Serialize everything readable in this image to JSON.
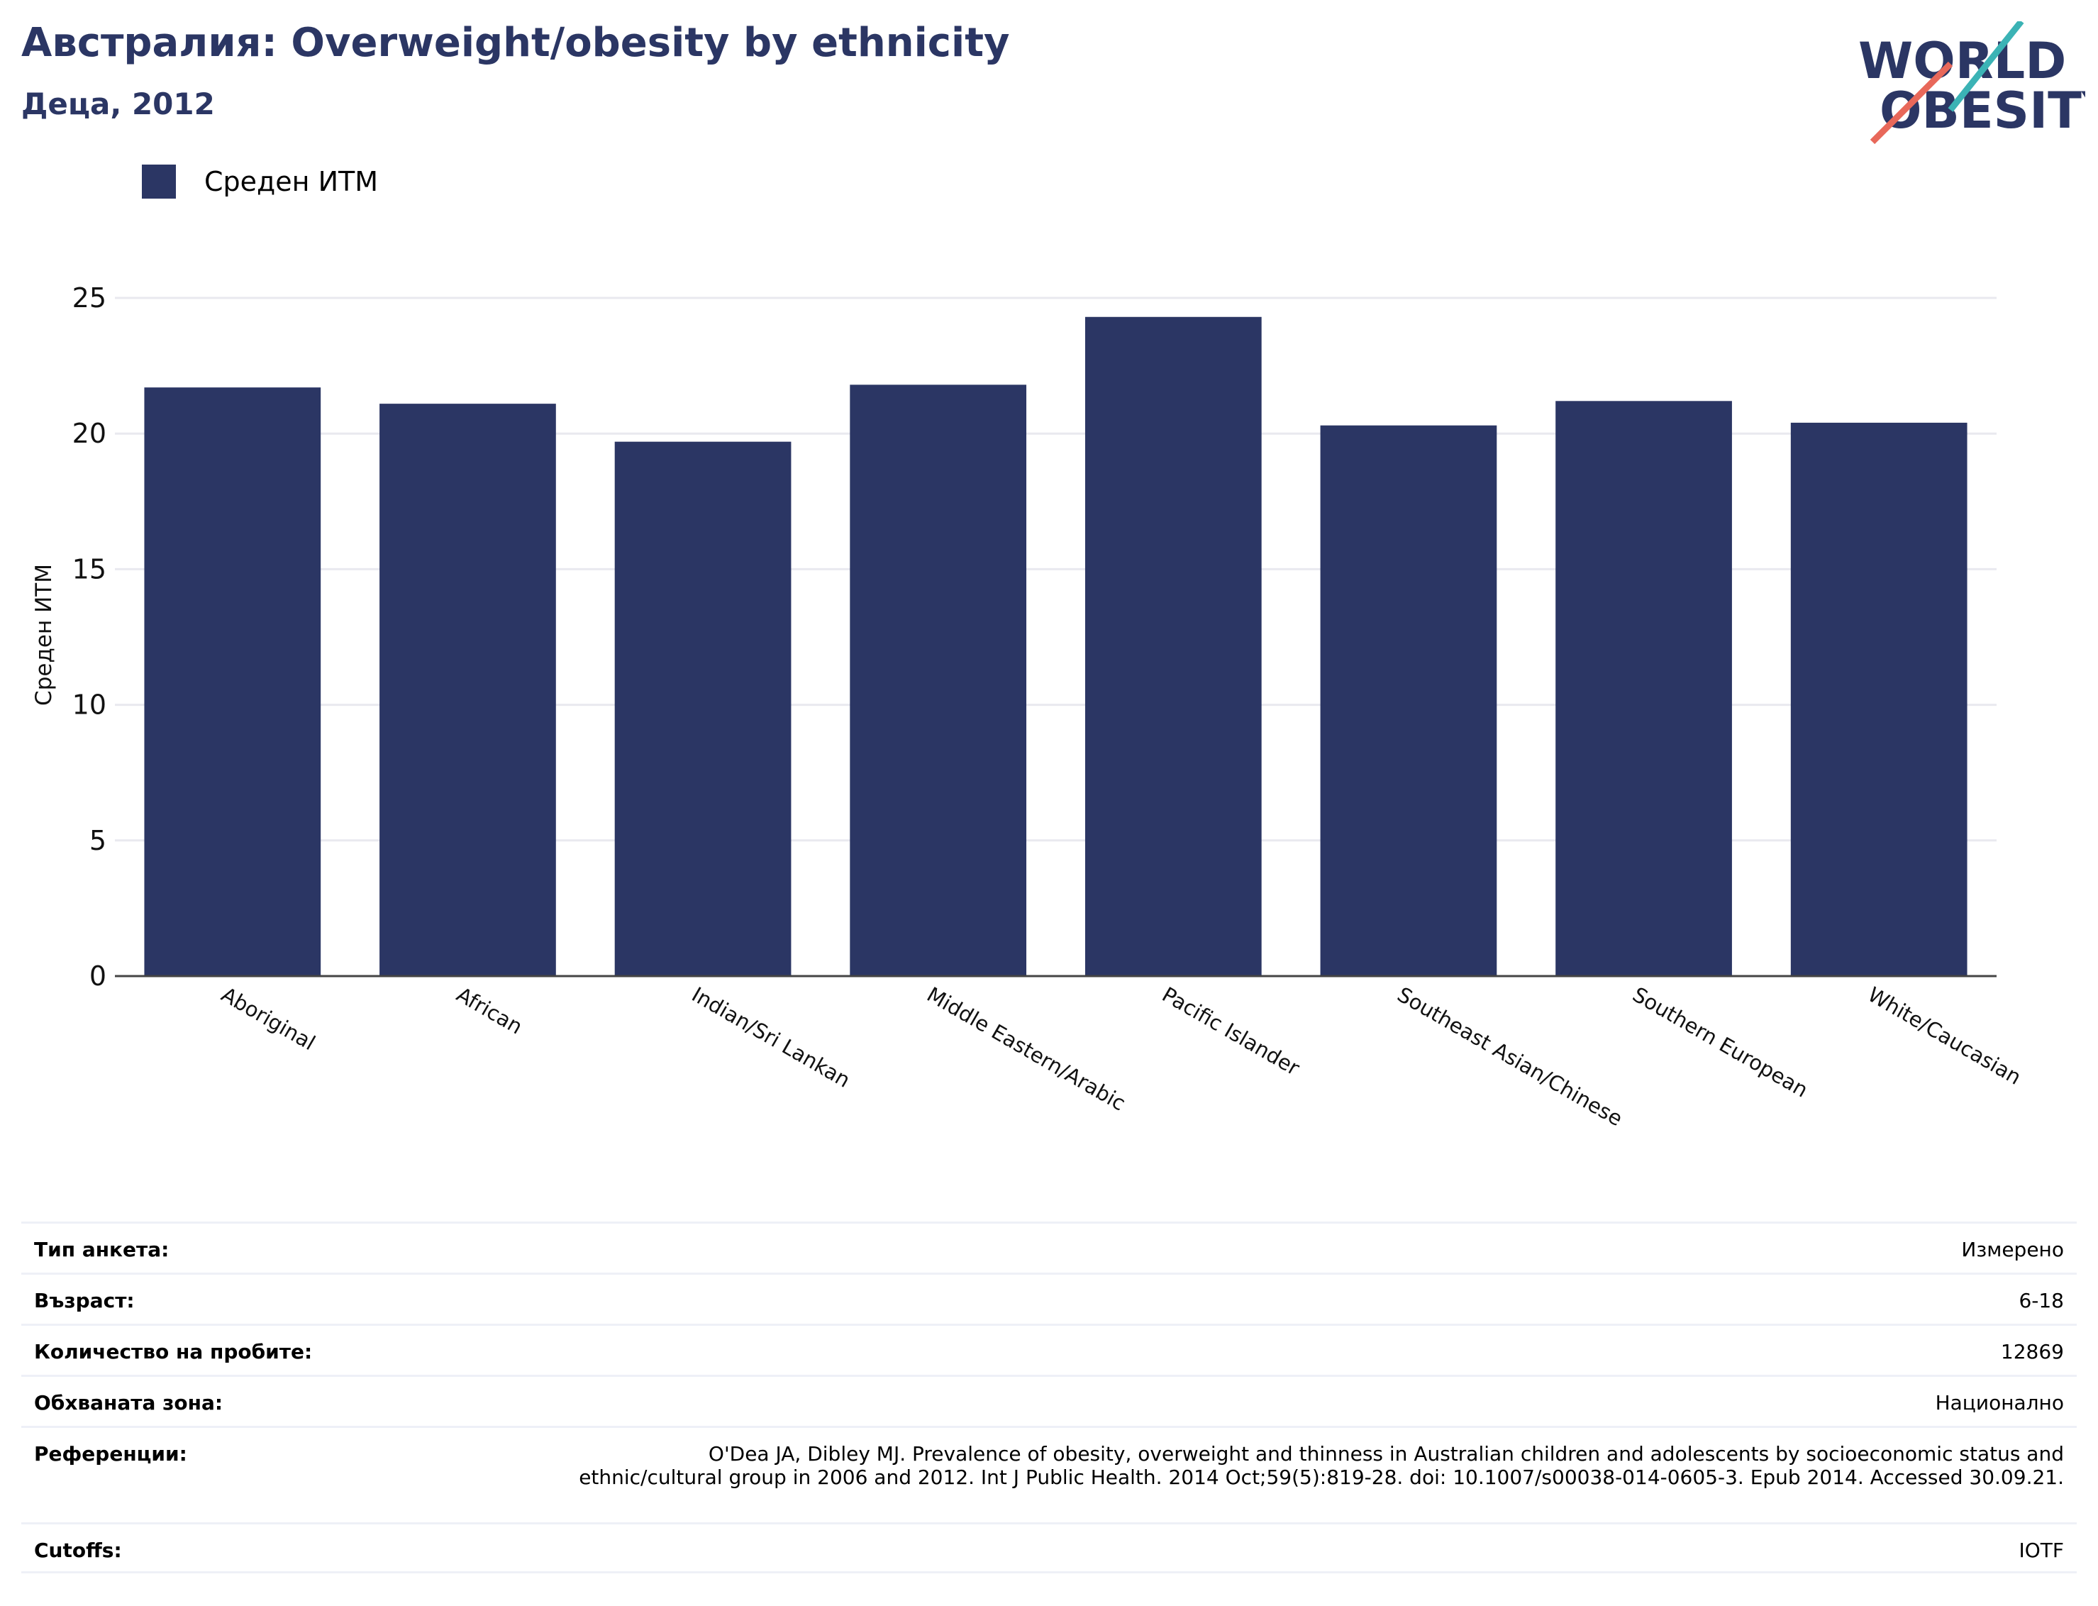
{
  "header": {
    "title": "Австралия: Overweight/obesity by ethnicity",
    "subtitle": "Деца, 2012",
    "logo_line1": "WORLD",
    "logo_line2": "OBESITY"
  },
  "legend": {
    "label": "Среден ИТМ",
    "color": "#2b3664"
  },
  "chart_data": {
    "type": "bar",
    "categories": [
      "Aboriginal",
      "African",
      "Indian/Sri Lankan",
      "Middle Eastern/Arabic",
      "Pacific Islander",
      "Southeast Asian/Chinese",
      "Southern European",
      "White/Caucasian"
    ],
    "series": [
      {
        "name": "Среден ИТМ",
        "values": [
          21.7,
          21.1,
          19.7,
          21.8,
          24.3,
          20.3,
          21.2,
          20.4
        ]
      }
    ],
    "ylabel": "Среден ИТМ",
    "xlabel": "",
    "ylim": [
      0,
      25
    ],
    "yticks": [
      0,
      5,
      10,
      15,
      20,
      25
    ],
    "grid": true,
    "legend_position": "top-left",
    "bar_color": "#2b3664"
  },
  "meta": {
    "survey_type": {
      "key": "Тип анкета:",
      "value": "Измерено"
    },
    "age": {
      "key": "Възраст:",
      "value": "6-18"
    },
    "sample_size": {
      "key": "Количество на пробите:",
      "value": "12869"
    },
    "area": {
      "key": "Обхваната зона:",
      "value": "Национално"
    },
    "references": {
      "key": "Референции:",
      "value": "O'Dea JA, Dibley MJ. Prevalence of obesity, overweight and thinness in Australian children and adolescents by socioeconomic status and ethnic/cultural group in 2006 and 2012. Int J Public Health. 2014 Oct;59(5):819-28. doi: 10.1007/s00038-014-0605-3. Epub 2014. Accessed 30.09.21."
    },
    "cutoffs": {
      "key": "Cutoffs:",
      "value": "IOTF"
    }
  }
}
